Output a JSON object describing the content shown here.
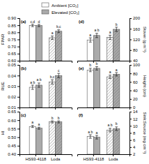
{
  "chart_data": [
    {
      "type": "bar",
      "title": "(a)",
      "ylabel": "FPAR",
      "categories": [
        null,
        null
      ],
      "legend": "top",
      "ylim": [
        0.6,
        0.9
      ],
      "yticks": [
        {
          "value": 0.6,
          "label": "0.60"
        },
        0.65,
        {
          "value": 0.7,
          "label": "0.70"
        },
        0.75,
        {
          "value": 0.8,
          "label": "0.80"
        },
        0.85,
        {
          "value": 0.9,
          "label": "0.90"
        }
      ],
      "series": [
        {
          "name": "Ambient [CO₂]",
          "color": "white",
          "values": [
            0.848,
            0.762
          ],
          "errors": [
            0.008,
            0.012
          ],
          "annotations": [
            "c,d",
            "a"
          ]
        },
        {
          "name": "Elevated [CO₂]",
          "color": "#aaaaaa",
          "values": [
            0.848,
            0.808
          ],
          "errors": [
            0.008,
            0.01
          ],
          "annotations": [
            "d",
            "b,c"
          ]
        }
      ]
    },
    {
      "type": "bar",
      "title": "(b)",
      "ylabel": "RUE",
      "categories": [
        null,
        null
      ],
      "ylim": [
        0.01,
        0.05
      ],
      "yticks": [
        0.01,
        0.02,
        0.03,
        0.04,
        0.05
      ],
      "series": [
        {
          "color": "white",
          "values": [
            0.029,
            0.034
          ],
          "errors": [
            0.002,
            0.002
          ],
          "annotations": [
            "a b",
            "b,c"
          ]
        },
        {
          "color": "#aaaaaa",
          "values": [
            0.031,
            0.04
          ],
          "errors": [
            0.002,
            0.002
          ],
          "annotations": [
            "a b",
            "c"
          ]
        }
      ]
    },
    {
      "type": "bar",
      "title": "(c)",
      "ylabel": "HI",
      "categories": [
        "HS93-4118",
        "Loda"
      ],
      "ylim": [
        0.4,
        0.65
      ],
      "yticks": [
        {
          "value": 0.4,
          "label": "0.40"
        },
        0.45,
        {
          "value": 0.5,
          "label": "0.50"
        },
        0.55,
        {
          "value": 0.6,
          "label": "0.60"
        },
        0.65
      ],
      "series": [
        {
          "color": "white",
          "values": [
            0.563,
            0.59
          ],
          "errors": [
            0.006,
            0.006
          ],
          "annotations": [
            "a",
            "b"
          ]
        },
        {
          "color": "#aaaaaa",
          "values": [
            0.553,
            0.59
          ],
          "errors": [
            0.006,
            0.006
          ],
          "annotations": [
            "a",
            "b"
          ]
        }
      ]
    },
    {
      "type": "bar",
      "title": "(d)",
      "ylabel": "Stover (g m⁻¹)",
      "categories": [
        null,
        null
      ],
      "ylim": [
        40,
        200
      ],
      "yticks": [
        40,
        80,
        120,
        160,
        200
      ],
      "series": [
        {
          "color": "white",
          "values": [
            118,
            128
          ],
          "errors": [
            8,
            8
          ],
          "annotations": [
            "a",
            "a"
          ]
        },
        {
          "color": "#aaaaaa",
          "values": [
            135,
            158
          ],
          "errors": [
            8,
            8
          ],
          "annotations": [
            "a b",
            "b"
          ]
        }
      ]
    },
    {
      "type": "bar",
      "title": "(e)",
      "ylabel": "Height (cm)",
      "categories": [
        null,
        null
      ],
      "ylim": [
        0,
        100
      ],
      "yticks": [
        0,
        20,
        40,
        60,
        80,
        100
      ],
      "series": [
        {
          "color": "white",
          "values": [
            88,
            72
          ],
          "errors": [
            4,
            4
          ],
          "annotations": [
            "b",
            "a"
          ]
        },
        {
          "color": "#aaaaaa",
          "values": [
            92,
            78
          ],
          "errors": [
            4,
            4
          ],
          "annotations": [
            "b",
            "a"
          ]
        }
      ]
    },
    {
      "type": "bar",
      "title": "(f)",
      "ylabel": "Sink:Source (mg cm⁻²)",
      "categories": [
        "HS93-4118",
        "Loda"
      ],
      "ylim": [
        2,
        14
      ],
      "yticks": [
        2,
        4,
        6,
        8,
        10,
        12,
        14
      ],
      "series": [
        {
          "color": "white",
          "values": [
            7.0,
            8.8
          ],
          "errors": [
            0.5,
            0.5
          ],
          "annotations": [
            "a b",
            "a b"
          ]
        },
        {
          "color": "#aaaaaa",
          "values": [
            6.8,
            9.2
          ],
          "errors": [
            0.5,
            0.5
          ],
          "annotations": [
            "a",
            "b"
          ]
        }
      ]
    }
  ]
}
